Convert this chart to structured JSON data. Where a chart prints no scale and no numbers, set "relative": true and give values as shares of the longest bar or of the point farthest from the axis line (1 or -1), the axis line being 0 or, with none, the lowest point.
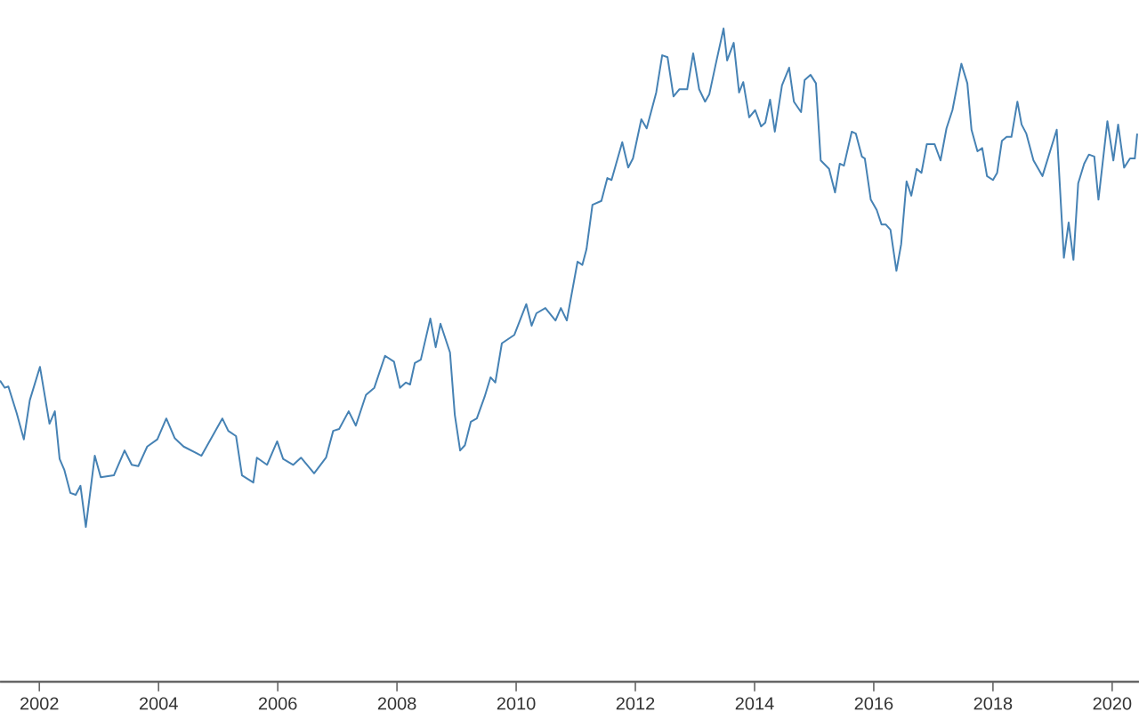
{
  "chart_data": {
    "type": "line",
    "relative": true,
    "color": "#4682b4",
    "xlim": [
      2001.34,
      2020.45
    ],
    "xticks": [
      2002,
      2004,
      2006,
      2008,
      2010,
      2012,
      2014,
      2016,
      2018,
      2020
    ],
    "x": [
      2001.34,
      2001.42,
      2001.48,
      2001.62,
      2001.74,
      2001.84,
      2002.01,
      2002.17,
      2002.26,
      2002.34,
      2002.42,
      2002.52,
      2002.61,
      2002.69,
      2002.78,
      2002.93,
      2003.03,
      2003.25,
      2003.43,
      2003.55,
      2003.66,
      2003.81,
      2003.98,
      2004.13,
      2004.27,
      2004.42,
      2004.72,
      2005.07,
      2005.17,
      2005.3,
      2005.4,
      2005.59,
      2005.65,
      2005.82,
      2005.99,
      2006.09,
      2006.26,
      2006.39,
      2006.61,
      2006.81,
      2006.93,
      2007.03,
      2007.19,
      2007.31,
      2007.48,
      2007.62,
      2007.8,
      2007.95,
      2008.05,
      2008.15,
      2008.22,
      2008.3,
      2008.4,
      2008.56,
      2008.65,
      2008.73,
      2008.89,
      2008.97,
      2009.06,
      2009.14,
      2009.24,
      2009.34,
      2009.47,
      2009.57,
      2009.65,
      2009.76,
      2009.97,
      2010.17,
      2010.26,
      2010.34,
      2010.49,
      2010.66,
      2010.75,
      2010.85,
      2011.03,
      2011.11,
      2011.18,
      2011.28,
      2011.43,
      2011.53,
      2011.6,
      2011.78,
      2011.88,
      2011.96,
      2012.1,
      2012.19,
      2012.35,
      2012.45,
      2012.54,
      2012.64,
      2012.74,
      2012.87,
      2012.97,
      2013.07,
      2013.17,
      2013.24,
      2013.35,
      2013.48,
      2013.54,
      2013.65,
      2013.74,
      2013.81,
      2013.91,
      2014.01,
      2014.11,
      2014.18,
      2014.26,
      2014.34,
      2014.46,
      2014.58,
      2014.66,
      2014.78,
      2014.84,
      2014.94,
      2015.03,
      2015.11,
      2015.25,
      2015.35,
      2015.43,
      2015.5,
      2015.63,
      2015.7,
      2015.8,
      2015.85,
      2015.95,
      2016.05,
      2016.13,
      2016.2,
      2016.28,
      2016.38,
      2016.46,
      2016.55,
      2016.63,
      2016.72,
      2016.8,
      2016.89,
      2017.02,
      2017.12,
      2017.22,
      2017.32,
      2017.47,
      2017.57,
      2017.64,
      2017.74,
      2017.82,
      2017.9,
      2018.0,
      2018.07,
      2018.15,
      2018.23,
      2018.31,
      2018.41,
      2018.48,
      2018.56,
      2018.68,
      2018.83,
      2019.07,
      2019.19,
      2019.27,
      2019.35,
      2019.43,
      2019.53,
      2019.61,
      2019.7,
      2019.77,
      2019.92,
      2020.02,
      2020.1,
      2020.2,
      2020.3,
      2020.38,
      2020.42
    ],
    "values": [
      0.461,
      0.45,
      0.452,
      0.411,
      0.371,
      0.431,
      0.482,
      0.395,
      0.414,
      0.341,
      0.324,
      0.289,
      0.286,
      0.3,
      0.237,
      0.346,
      0.313,
      0.316,
      0.354,
      0.332,
      0.33,
      0.36,
      0.371,
      0.403,
      0.373,
      0.36,
      0.346,
      0.403,
      0.384,
      0.376,
      0.316,
      0.305,
      0.343,
      0.332,
      0.368,
      0.341,
      0.332,
      0.343,
      0.319,
      0.343,
      0.384,
      0.387,
      0.414,
      0.392,
      0.439,
      0.45,
      0.499,
      0.49,
      0.45,
      0.458,
      0.455,
      0.488,
      0.493,
      0.556,
      0.512,
      0.548,
      0.504,
      0.409,
      0.354,
      0.362,
      0.398,
      0.403,
      0.436,
      0.466,
      0.458,
      0.518,
      0.531,
      0.578,
      0.545,
      0.564,
      0.572,
      0.553,
      0.572,
      0.553,
      0.643,
      0.638,
      0.662,
      0.73,
      0.736,
      0.771,
      0.768,
      0.826,
      0.787,
      0.801,
      0.861,
      0.847,
      0.902,
      0.959,
      0.956,
      0.896,
      0.907,
      0.907,
      0.962,
      0.907,
      0.888,
      0.899,
      0.946,
      1,
      0.951,
      0.978,
      0.902,
      0.918,
      0.864,
      0.875,
      0.85,
      0.856,
      0.891,
      0.842,
      0.913,
      0.94,
      0.888,
      0.872,
      0.921,
      0.929,
      0.916,
      0.798,
      0.785,
      0.749,
      0.793,
      0.79,
      0.842,
      0.839,
      0.804,
      0.801,
      0.738,
      0.722,
      0.7,
      0.7,
      0.692,
      0.629,
      0.67,
      0.766,
      0.744,
      0.785,
      0.779,
      0.823,
      0.823,
      0.798,
      0.847,
      0.875,
      0.946,
      0.916,
      0.845,
      0.812,
      0.817,
      0.774,
      0.768,
      0.779,
      0.828,
      0.834,
      0.834,
      0.888,
      0.853,
      0.839,
      0.798,
      0.774,
      0.845,
      0.649,
      0.703,
      0.646,
      0.763,
      0.793,
      0.807,
      0.804,
      0.738,
      0.858,
      0.798,
      0.853,
      0.787,
      0.801,
      0.801,
      0.839
    ]
  }
}
